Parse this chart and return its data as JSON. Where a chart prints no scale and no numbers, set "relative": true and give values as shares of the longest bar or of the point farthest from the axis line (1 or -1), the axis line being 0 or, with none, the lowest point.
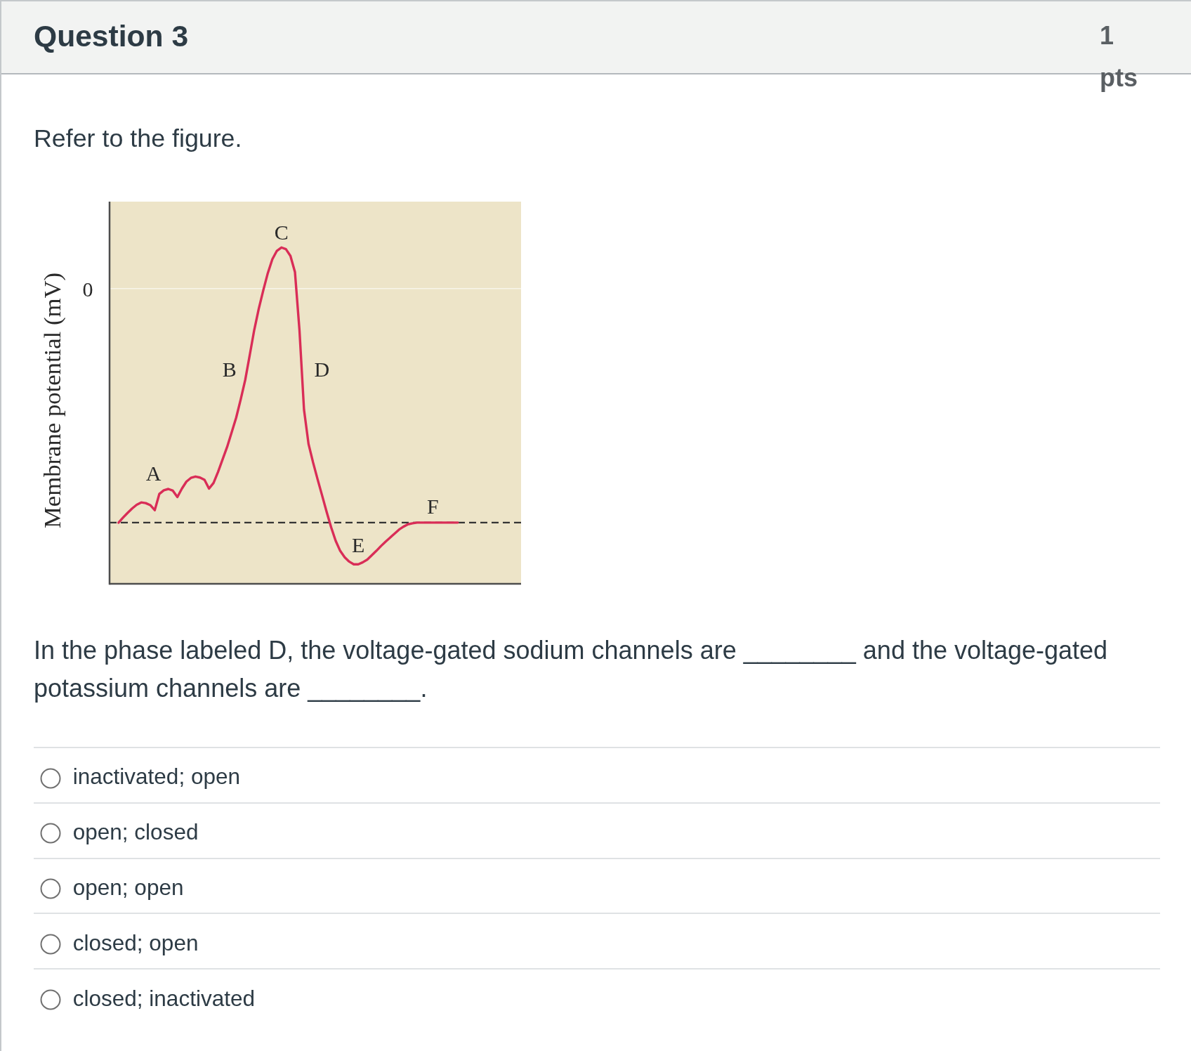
{
  "chart_data": {
    "type": "line",
    "title": "Question 3",
    "ylabel": "Membrane potential (mV)",
    "relative": true,
    "categories": [
      null,
      null,
      null,
      null,
      null,
      null,
      null,
      null,
      null,
      null,
      null,
      null,
      null,
      null,
      null,
      null,
      null,
      null,
      null,
      null,
      null,
      null,
      null,
      null,
      null,
      null,
      null,
      null,
      null,
      null,
      null,
      null,
      null,
      null,
      null,
      null,
      null,
      null,
      null,
      null,
      null,
      null,
      null,
      null,
      null,
      null,
      null,
      null,
      null,
      null,
      null,
      null,
      null,
      null,
      null,
      null,
      null,
      null,
      null,
      null,
      null,
      null,
      null,
      null,
      null,
      null,
      null,
      null,
      null,
      null,
      null,
      null,
      null,
      null,
      null,
      null,
      null,
      null,
      null,
      null,
      null,
      null,
      null,
      null,
      null,
      null,
      null,
      null
    ],
    "series": [
      {
        "color": "#d92d57",
        "values": [
          0.182,
          0.197,
          0.211,
          0.224,
          0.235,
          0.242,
          0.24,
          0.234,
          0.219,
          0.267,
          0.278,
          0.282,
          0.277,
          0.258,
          0.283,
          0.304,
          0.315,
          0.319,
          0.316,
          0.309,
          0.283,
          0.3,
          0.333,
          0.37,
          0.407,
          0.45,
          0.494,
          0.548,
          0.606,
          0.68,
          0.755,
          0.818,
          0.873,
          0.924,
          0.965,
          0.99,
          1.0,
          0.995,
          0.975,
          0.927,
          0.754,
          0.518,
          0.416,
          0.361,
          0.311,
          0.263,
          0.214,
          0.168,
          0.128,
          0.098,
          0.079,
          0.066,
          0.058,
          0.058,
          0.064,
          0.072,
          0.085,
          0.098,
          0.112,
          0.125,
          0.137,
          0.149,
          0.161,
          0.17,
          0.177,
          0.18,
          0.182,
          0.182,
          0.182,
          0.182,
          0.182,
          0.182,
          0.182,
          0.182,
          0.182,
          0.182,
          null,
          null,
          null,
          null,
          null,
          null,
          null,
          null,
          null,
          null,
          null,
          null
        ]
      }
    ],
    "ref_lines": [
      {
        "axis": "y",
        "value": 0.878,
        "color": "#f8f5ea"
      },
      {
        "axis": "y",
        "value": 0.182,
        "line_style": "dashed",
        "color": "#333333"
      }
    ],
    "annotations": [
      "1 pts",
      "Refer to the figure.",
      "In the phase labeled D, the voltage-gated sodium channels are ________ and the voltage-gated potassium channels are ________.",
      "inactivated; open",
      "open; closed",
      "open; open",
      "closed; open",
      "closed; inactivated",
      "0",
      "A",
      "B",
      "D",
      {
        "text": "C",
        "y": 1.0
      },
      {
        "text": "E",
        "y": 0.058
      },
      {
        "text": "F",
        "y": 0.182
      }
    ]
  }
}
